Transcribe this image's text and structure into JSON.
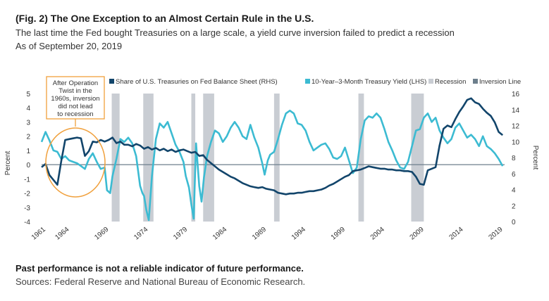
{
  "header": {
    "title": "(Fig. 2) The One Exception to an Almost Certain Rule in the U.S.",
    "subtitle": "The last time the Fed bought Treasuries on a large scale, a yield curve inversion failed to predict a recession",
    "as_of": "As of September 20, 2019"
  },
  "footer": {
    "disclaimer": "Past performance is not a reliable indicator of future performance.",
    "sources": "Sources: Federal Reserve and National Bureau of Economic Research."
  },
  "chart_data": {
    "type": "line",
    "x_label_years": [
      "1961",
      "1964",
      "1969",
      "1974",
      "1979",
      "1984",
      "1989",
      "1994",
      "1999",
      "2004",
      "2009",
      "2014",
      "2019"
    ],
    "left_axis": {
      "label": "Percent",
      "ylim": [
        -4,
        5
      ],
      "ticks": [
        "5",
        "4",
        "3",
        "2",
        "1",
        "0",
        "-1",
        "-2",
        "-3",
        "-4"
      ]
    },
    "right_axis": {
      "label": "Percent",
      "ylim": [
        0,
        16
      ],
      "ticks": [
        "16",
        "14",
        "12",
        "10",
        "8",
        "6",
        "4",
        "2",
        "0"
      ]
    },
    "legend": [
      {
        "name": "Share of U.S. Treasuries on Fed Balance Sheet (RHS)",
        "color": "#12456b",
        "kind": "square"
      },
      {
        "name": "10-Year–3-Month Treasury Yield (LHS)",
        "color": "#3cbbd2",
        "kind": "square"
      },
      {
        "name": "Recession",
        "color": "#c9cdd3",
        "kind": "square"
      },
      {
        "name": "Inversion Line",
        "color": "#6d7f8c",
        "kind": "square"
      }
    ],
    "annotation": {
      "lines": [
        "After Operation",
        "Twist in the",
        "1960s, inversion",
        "did not lead",
        "to recession"
      ]
    },
    "recessions": [
      [
        1969.9,
        1970.9
      ],
      [
        1973.9,
        1975.2
      ],
      [
        1980.0,
        1980.5
      ],
      [
        1981.5,
        1982.9
      ],
      [
        1990.5,
        1991.2
      ],
      [
        2001.2,
        2001.9
      ],
      [
        2007.9,
        2009.5
      ]
    ],
    "series": [
      {
        "name": "10-Year–3-Month Treasury Yield (LHS)",
        "axis": "left",
        "color": "#3cbbd2",
        "points": [
          [
            1961.0,
            1.6
          ],
          [
            1961.5,
            2.3
          ],
          [
            1962.0,
            1.7
          ],
          [
            1962.5,
            1.0
          ],
          [
            1963.0,
            0.9
          ],
          [
            1963.5,
            0.4
          ],
          [
            1964.0,
            0.6
          ],
          [
            1964.5,
            0.3
          ],
          [
            1965.0,
            0.2
          ],
          [
            1965.5,
            0.1
          ],
          [
            1966.0,
            -0.1
          ],
          [
            1966.5,
            -0.3
          ],
          [
            1967.0,
            0.4
          ],
          [
            1967.5,
            0.8
          ],
          [
            1968.0,
            0.2
          ],
          [
            1968.5,
            -0.3
          ],
          [
            1969.0,
            -0.2
          ],
          [
            1969.3,
            -1.8
          ],
          [
            1969.7,
            -2.0
          ],
          [
            1970.0,
            -0.8
          ],
          [
            1970.5,
            0.4
          ],
          [
            1971.0,
            1.8
          ],
          [
            1971.5,
            1.6
          ],
          [
            1972.0,
            1.9
          ],
          [
            1972.5,
            1.5
          ],
          [
            1973.0,
            0.6
          ],
          [
            1973.5,
            -1.5
          ],
          [
            1973.8,
            -2.0
          ],
          [
            1974.0,
            -2.2
          ],
          [
            1974.3,
            -3.2
          ],
          [
            1974.6,
            -3.9
          ],
          [
            1975.0,
            -0.8
          ],
          [
            1975.5,
            1.8
          ],
          [
            1976.0,
            2.9
          ],
          [
            1976.5,
            2.6
          ],
          [
            1977.0,
            3.0
          ],
          [
            1977.5,
            2.2
          ],
          [
            1978.0,
            1.4
          ],
          [
            1978.5,
            0.9
          ],
          [
            1979.0,
            0.2
          ],
          [
            1979.3,
            -0.8
          ],
          [
            1979.7,
            -1.6
          ],
          [
            1980.0,
            -2.8
          ],
          [
            1980.3,
            -3.8
          ],
          [
            1980.6,
            1.5
          ],
          [
            1981.0,
            -1.5
          ],
          [
            1981.3,
            -2.6
          ],
          [
            1981.6,
            -0.9
          ],
          [
            1982.0,
            0.6
          ],
          [
            1982.5,
            1.6
          ],
          [
            1983.0,
            2.4
          ],
          [
            1983.5,
            2.2
          ],
          [
            1984.0,
            1.6
          ],
          [
            1984.5,
            2.0
          ],
          [
            1985.0,
            2.6
          ],
          [
            1985.5,
            3.0
          ],
          [
            1986.0,
            2.6
          ],
          [
            1986.5,
            2.0
          ],
          [
            1987.0,
            1.8
          ],
          [
            1987.5,
            2.8
          ],
          [
            1988.0,
            1.9
          ],
          [
            1988.5,
            1.2
          ],
          [
            1989.0,
            0.1
          ],
          [
            1989.3,
            -0.7
          ],
          [
            1989.7,
            0.3
          ],
          [
            1990.0,
            0.7
          ],
          [
            1990.5,
            0.9
          ],
          [
            1991.0,
            1.8
          ],
          [
            1991.5,
            2.8
          ],
          [
            1992.0,
            3.6
          ],
          [
            1992.5,
            3.8
          ],
          [
            1993.0,
            3.6
          ],
          [
            1993.5,
            2.9
          ],
          [
            1994.0,
            2.8
          ],
          [
            1994.5,
            2.4
          ],
          [
            1995.0,
            1.6
          ],
          [
            1995.5,
            1.0
          ],
          [
            1996.0,
            1.2
          ],
          [
            1996.5,
            1.4
          ],
          [
            1997.0,
            1.5
          ],
          [
            1997.5,
            1.1
          ],
          [
            1998.0,
            0.5
          ],
          [
            1998.5,
            0.4
          ],
          [
            1999.0,
            0.6
          ],
          [
            1999.5,
            1.2
          ],
          [
            2000.0,
            0.3
          ],
          [
            2000.5,
            -0.6
          ],
          [
            2001.0,
            -0.2
          ],
          [
            2001.5,
            1.8
          ],
          [
            2002.0,
            3.1
          ],
          [
            2002.5,
            3.4
          ],
          [
            2003.0,
            3.3
          ],
          [
            2003.5,
            3.6
          ],
          [
            2004.0,
            3.3
          ],
          [
            2004.5,
            2.5
          ],
          [
            2005.0,
            1.6
          ],
          [
            2005.5,
            1.0
          ],
          [
            2006.0,
            0.3
          ],
          [
            2006.5,
            -0.2
          ],
          [
            2007.0,
            -0.3
          ],
          [
            2007.5,
            0.2
          ],
          [
            2008.0,
            1.3
          ],
          [
            2008.5,
            2.4
          ],
          [
            2009.0,
            2.5
          ],
          [
            2009.5,
            3.3
          ],
          [
            2010.0,
            3.6
          ],
          [
            2010.5,
            3.0
          ],
          [
            2011.0,
            3.3
          ],
          [
            2011.5,
            2.4
          ],
          [
            2012.0,
            1.9
          ],
          [
            2012.5,
            1.5
          ],
          [
            2013.0,
            1.8
          ],
          [
            2013.5,
            2.6
          ],
          [
            2014.0,
            2.9
          ],
          [
            2014.5,
            2.4
          ],
          [
            2015.0,
            1.9
          ],
          [
            2015.5,
            2.1
          ],
          [
            2016.0,
            1.8
          ],
          [
            2016.5,
            1.3
          ],
          [
            2017.0,
            2.0
          ],
          [
            2017.5,
            1.3
          ],
          [
            2018.0,
            1.1
          ],
          [
            2018.5,
            0.8
          ],
          [
            2019.0,
            0.4
          ],
          [
            2019.5,
            -0.1
          ]
        ]
      },
      {
        "name": "Share of U.S. Treasuries on Fed Balance Sheet (RHS)",
        "axis": "right",
        "color": "#12456b",
        "points": [
          [
            1961.0,
            6.8
          ],
          [
            1961.5,
            7.2
          ],
          [
            1962.0,
            5.8
          ],
          [
            1962.5,
            5.2
          ],
          [
            1963.0,
            4.6
          ],
          [
            1963.5,
            7.6
          ],
          [
            1964.0,
            10.2
          ],
          [
            1964.5,
            10.3
          ],
          [
            1965.0,
            10.4
          ],
          [
            1965.5,
            10.5
          ],
          [
            1966.0,
            10.4
          ],
          [
            1966.5,
            8.2
          ],
          [
            1967.0,
            8.8
          ],
          [
            1967.5,
            10.0
          ],
          [
            1968.0,
            9.9
          ],
          [
            1968.5,
            10.2
          ],
          [
            1969.0,
            10.0
          ],
          [
            1969.5,
            10.2
          ],
          [
            1970.0,
            10.5
          ],
          [
            1970.5,
            9.8
          ],
          [
            1971.0,
            10.0
          ],
          [
            1971.5,
            9.6
          ],
          [
            1972.0,
            9.6
          ],
          [
            1972.5,
            9.4
          ],
          [
            1973.0,
            9.7
          ],
          [
            1973.5,
            9.5
          ],
          [
            1974.0,
            9.1
          ],
          [
            1974.5,
            9.3
          ],
          [
            1975.0,
            9.0
          ],
          [
            1975.5,
            9.2
          ],
          [
            1976.0,
            8.9
          ],
          [
            1976.5,
            9.1
          ],
          [
            1977.0,
            8.8
          ],
          [
            1977.5,
            9.0
          ],
          [
            1978.0,
            8.7
          ],
          [
            1978.5,
            8.9
          ],
          [
            1979.0,
            9.0
          ],
          [
            1979.5,
            8.8
          ],
          [
            1980.0,
            8.6
          ],
          [
            1980.5,
            8.7
          ],
          [
            1981.0,
            8.2
          ],
          [
            1981.5,
            8.3
          ],
          [
            1982.0,
            7.7
          ],
          [
            1982.5,
            7.3
          ],
          [
            1983.0,
            6.9
          ],
          [
            1983.5,
            6.5
          ],
          [
            1984.0,
            6.2
          ],
          [
            1984.5,
            5.9
          ],
          [
            1985.0,
            5.6
          ],
          [
            1985.5,
            5.4
          ],
          [
            1986.0,
            5.1
          ],
          [
            1986.5,
            4.8
          ],
          [
            1987.0,
            4.6
          ],
          [
            1987.5,
            4.4
          ],
          [
            1988.0,
            4.3
          ],
          [
            1988.5,
            4.2
          ],
          [
            1989.0,
            4.3
          ],
          [
            1989.5,
            4.1
          ],
          [
            1990.0,
            4.0
          ],
          [
            1990.5,
            3.9
          ],
          [
            1991.0,
            3.6
          ],
          [
            1991.5,
            3.5
          ],
          [
            1992.0,
            3.4
          ],
          [
            1992.5,
            3.5
          ],
          [
            1993.0,
            3.5
          ],
          [
            1993.5,
            3.6
          ],
          [
            1994.0,
            3.6
          ],
          [
            1994.5,
            3.7
          ],
          [
            1995.0,
            3.8
          ],
          [
            1995.5,
            3.8
          ],
          [
            1996.0,
            3.9
          ],
          [
            1996.5,
            4.0
          ],
          [
            1997.0,
            4.2
          ],
          [
            1997.5,
            4.5
          ],
          [
            1998.0,
            4.7
          ],
          [
            1998.5,
            5.0
          ],
          [
            1999.0,
            5.3
          ],
          [
            1999.5,
            5.6
          ],
          [
            2000.0,
            5.8
          ],
          [
            2000.5,
            6.3
          ],
          [
            2001.0,
            6.4
          ],
          [
            2001.5,
            6.5
          ],
          [
            2002.0,
            6.7
          ],
          [
            2002.5,
            6.9
          ],
          [
            2003.0,
            6.8
          ],
          [
            2003.5,
            6.7
          ],
          [
            2004.0,
            6.6
          ],
          [
            2004.5,
            6.6
          ],
          [
            2005.0,
            6.5
          ],
          [
            2005.5,
            6.5
          ],
          [
            2006.0,
            6.4
          ],
          [
            2006.5,
            6.4
          ],
          [
            2007.0,
            6.3
          ],
          [
            2007.5,
            6.3
          ],
          [
            2008.0,
            6.2
          ],
          [
            2008.5,
            5.6
          ],
          [
            2009.0,
            4.7
          ],
          [
            2009.5,
            4.6
          ],
          [
            2010.0,
            6.4
          ],
          [
            2010.5,
            6.6
          ],
          [
            2011.0,
            6.8
          ],
          [
            2011.5,
            9.5
          ],
          [
            2012.0,
            11.6
          ],
          [
            2012.5,
            12.0
          ],
          [
            2013.0,
            11.8
          ],
          [
            2013.5,
            12.8
          ],
          [
            2014.0,
            13.7
          ],
          [
            2014.5,
            14.4
          ],
          [
            2015.0,
            15.2
          ],
          [
            2015.5,
            15.4
          ],
          [
            2016.0,
            14.9
          ],
          [
            2016.5,
            14.7
          ],
          [
            2017.0,
            14.1
          ],
          [
            2017.5,
            13.6
          ],
          [
            2018.0,
            13.2
          ],
          [
            2018.5,
            12.4
          ],
          [
            2019.0,
            11.2
          ],
          [
            2019.5,
            10.8
          ]
        ]
      }
    ]
  }
}
